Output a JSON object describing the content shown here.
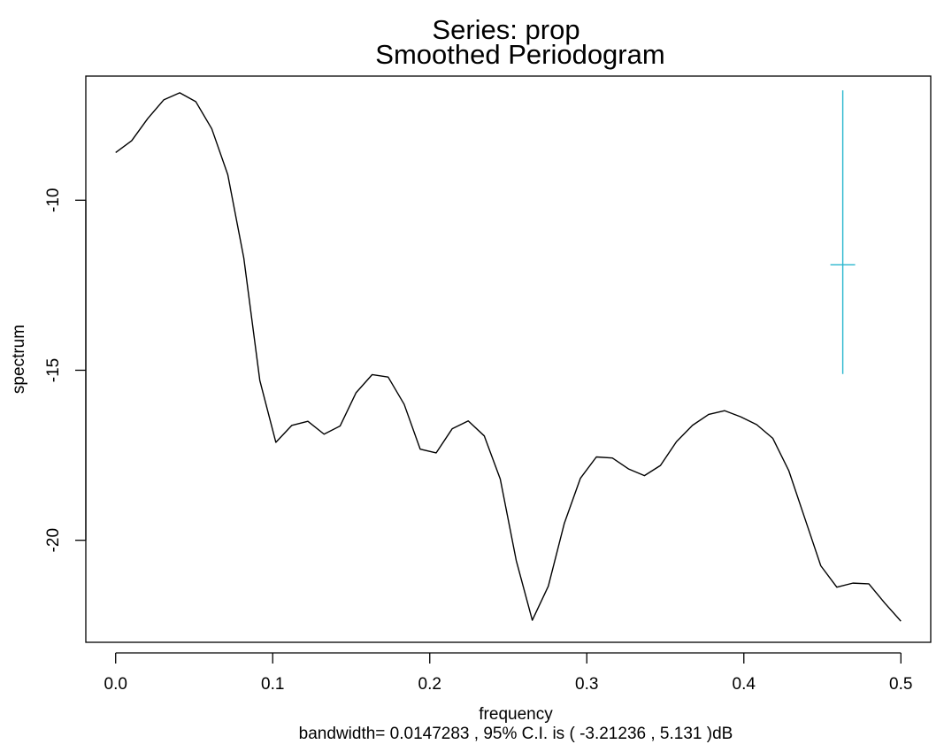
{
  "chart_data": {
    "type": "line",
    "title_line1": "Series:  prop",
    "title_line2": "Smoothed Periodogram",
    "xlabel": "frequency",
    "ylabel": "spectrum",
    "subtitle": "bandwidth= 0.0147283 , 95% C.I. is ( -3.21236 , 5.131 )dB",
    "xlim": [
      -0.019,
      0.519
    ],
    "ylim": [
      -23.0,
      -6.35
    ],
    "x_ticks": [
      0.0,
      0.1,
      0.2,
      0.3,
      0.4,
      0.5
    ],
    "x_tick_labels": [
      "0.0",
      "0.1",
      "0.2",
      "0.3",
      "0.4",
      "0.5"
    ],
    "y_ticks": [
      -10,
      -15,
      -20
    ],
    "y_tick_labels": [
      "-10",
      "-15",
      "-20"
    ],
    "grid": false,
    "line_color": "#000000",
    "ci_color": "#29B6CE",
    "ci_bar": {
      "x": 0.463,
      "center": -11.9,
      "lower": -15.11,
      "upper": -6.77
    },
    "series": [
      {
        "x": [
          0.0,
          0.0102,
          0.0204,
          0.0306,
          0.0408,
          0.051,
          0.0612,
          0.0714,
          0.0816,
          0.0918,
          0.102,
          0.1122,
          0.1224,
          0.1327,
          0.1429,
          0.1531,
          0.1633,
          0.1735,
          0.1837,
          0.1939,
          0.2041,
          0.2143,
          0.2245,
          0.2347,
          0.2449,
          0.2551,
          0.2653,
          0.2755,
          0.2857,
          0.2959,
          0.3061,
          0.3163,
          0.3265,
          0.3367,
          0.3469,
          0.3571,
          0.3673,
          0.3776,
          0.3878,
          0.398,
          0.4082,
          0.4184,
          0.4286,
          0.4388,
          0.449,
          0.4592,
          0.4694,
          0.4796,
          0.4898,
          0.5
        ],
        "y": [
          -8.6,
          -8.25,
          -7.6,
          -7.05,
          -6.84,
          -7.1,
          -7.9,
          -9.25,
          -11.7,
          -15.3,
          -17.12,
          -16.62,
          -16.5,
          -16.88,
          -16.64,
          -15.66,
          -15.13,
          -15.2,
          -16.0,
          -17.32,
          -17.43,
          -16.72,
          -16.49,
          -16.93,
          -18.2,
          -20.6,
          -22.35,
          -21.35,
          -19.5,
          -18.18,
          -17.55,
          -17.58,
          -17.9,
          -18.1,
          -17.8,
          -17.1,
          -16.62,
          -16.3,
          -16.19,
          -16.37,
          -16.6,
          -17.0,
          -17.95,
          -19.35,
          -20.75,
          -21.38,
          -21.26,
          -21.28,
          -21.85,
          -22.38
        ]
      }
    ]
  }
}
